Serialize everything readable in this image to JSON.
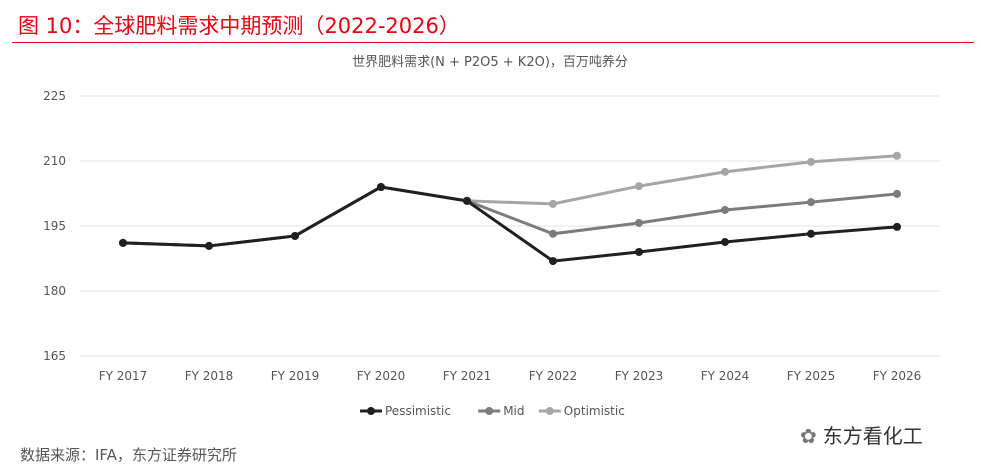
{
  "header": {
    "title": "图 10：全球肥料需求中期预测（2022-2026）"
  },
  "footer": {
    "source": "数据来源：IFA，东方证券研究所",
    "brand": "东方看化工",
    "brand_icon": "wechat-icon"
  },
  "chart_data": {
    "type": "line",
    "title": "世界肥料需求(N + P2O5 + K2O)，百万吨养分",
    "categories": [
      "FY 2017",
      "FY 2018",
      "FY 2019",
      "FY 2020",
      "FY 2021",
      "FY 2022",
      "FY 2023",
      "FY 2024",
      "FY 2025",
      "FY 2026"
    ],
    "yticks": [
      165,
      180,
      195,
      210,
      225
    ],
    "ylim": [
      165,
      225
    ],
    "grid": true,
    "legend_position": "bottom",
    "series": [
      {
        "name": "Pessimistic",
        "color": "#231f20",
        "values": [
          191.1,
          190.4,
          192.7,
          204.0,
          200.8,
          186.9,
          189.0,
          191.3,
          193.2,
          194.8
        ]
      },
      {
        "name": "Mid",
        "color": "#7f7b7c",
        "values": [
          191.1,
          190.4,
          192.7,
          204.0,
          200.8,
          193.2,
          195.7,
          198.7,
          200.5,
          202.4
        ]
      },
      {
        "name": "Optimistic",
        "color": "#a6a6a6",
        "values": [
          191.1,
          190.4,
          192.7,
          204.0,
          200.8,
          200.1,
          204.2,
          207.5,
          209.8,
          211.2
        ]
      }
    ]
  }
}
